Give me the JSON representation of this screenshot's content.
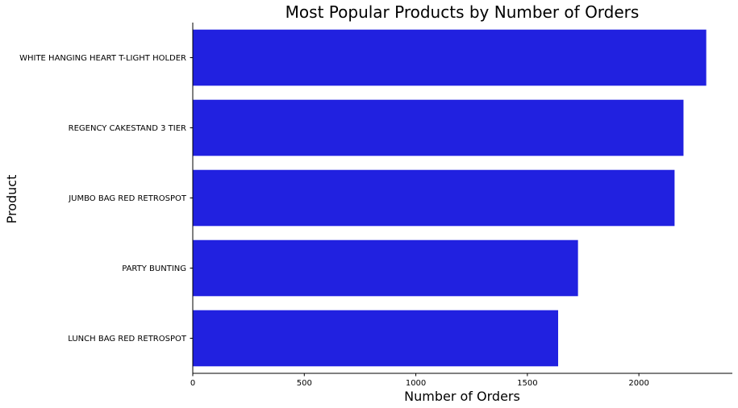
{
  "chart_data": {
    "type": "bar",
    "orientation": "horizontal",
    "title": "Most Popular Products by Number of Orders",
    "xlabel": "Number of Orders",
    "ylabel": "Product",
    "categories": [
      "WHITE HANGING HEART T-LIGHT HOLDER",
      "REGENCY CAKESTAND 3 TIER",
      "JUMBO BAG RED RETROSPOT",
      "PARTY BUNTING",
      "LUNCH BAG RED RETROSPOT"
    ],
    "values": [
      2302,
      2200,
      2160,
      1727,
      1638
    ],
    "xlim": [
      0,
      2419
    ],
    "xticks": [
      "0",
      "500",
      "1000",
      "1500",
      "2000"
    ],
    "xtick_values": [
      0,
      500,
      1000,
      1500,
      2000
    ],
    "bar_color": "#2121e0",
    "grid": false,
    "legend": "none"
  }
}
